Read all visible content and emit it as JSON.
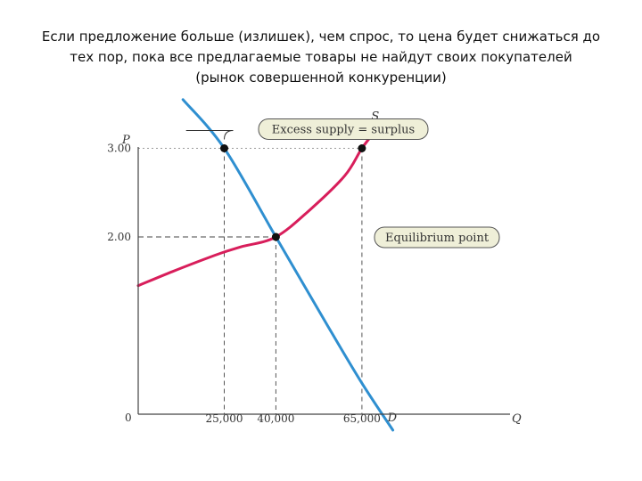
{
  "heading": {
    "line1": "Если предложение больше (излишек), чем спрос, то цена будет снижаться до",
    "line2": "тех пор, пока все предлагаемые товары не найдут своих покупателей",
    "line3": "(рынок совершенной конкуренции)"
  },
  "chart_data": {
    "type": "line",
    "xlabel": "Q",
    "ylabel": "P",
    "origin_label": "0",
    "x_ticks": [
      {
        "value": 25000,
        "label": "25,000"
      },
      {
        "value": 40000,
        "label": "40,000"
      },
      {
        "value": 65000,
        "label": "65,000"
      }
    ],
    "y_ticks": [
      {
        "value": 2.0,
        "label": "2.00"
      },
      {
        "value": 3.0,
        "label": "3.00"
      }
    ],
    "series": [
      {
        "name": "S",
        "color": "#d81e5b",
        "points": [
          [
            0,
            1.45
          ],
          [
            10000,
            1.61
          ],
          [
            20000,
            1.76
          ],
          [
            25000,
            1.83
          ],
          [
            30000,
            1.89
          ],
          [
            40000,
            2.0
          ],
          [
            50000,
            2.31
          ],
          [
            60000,
            2.69
          ],
          [
            65000,
            3.0
          ],
          [
            69000,
            3.2
          ]
        ]
      },
      {
        "name": "D",
        "color": "#2f8fd0",
        "points": [
          [
            13000,
            3.55
          ],
          [
            25000,
            3.0
          ],
          [
            40000,
            2.0
          ],
          [
            55000,
            1.0
          ],
          [
            65000,
            0.35
          ],
          [
            74000,
            -0.18
          ]
        ]
      }
    ],
    "points": [
      {
        "x": 25000,
        "y": 3.0
      },
      {
        "x": 65000,
        "y": 3.0
      },
      {
        "x": 40000,
        "y": 2.0
      }
    ],
    "annotations": {
      "surplus": "Excess supply = surplus",
      "equilibrium": "Equilibrium point"
    },
    "grid": false
  }
}
